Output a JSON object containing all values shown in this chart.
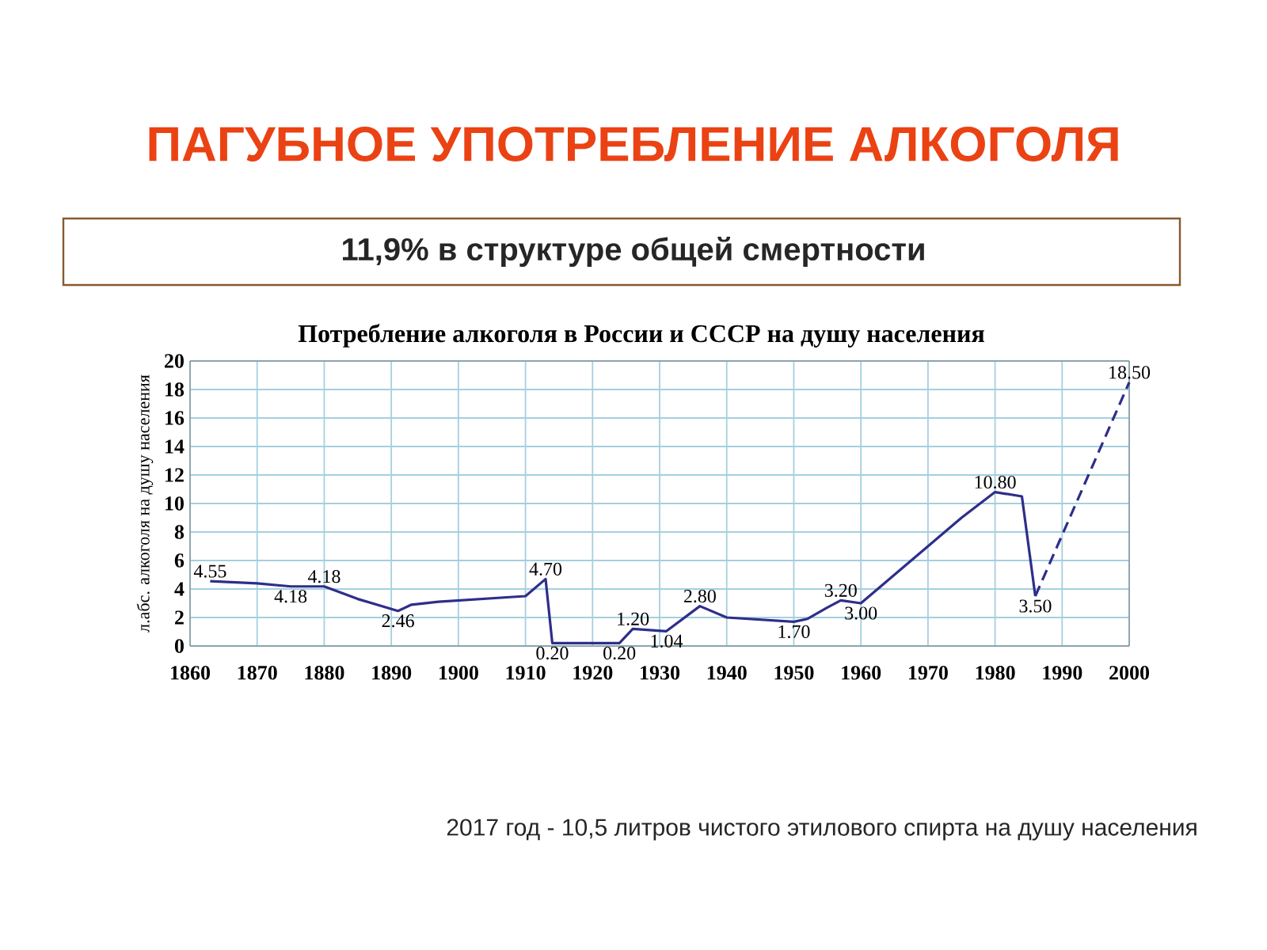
{
  "chart_data": {
    "type": "line",
    "title": "ПАГУБНОЕ УПОТРЕБЛЕНИЕ АЛКОГОЛЯ",
    "subtitle": "11,9% в структуре общей смертности",
    "annotations": [
      "Потребление алкоголя в России и СССР на душу населения",
      "2017 год - 10,5 литров чистого этилового спирта на душу населения"
    ],
    "ylabel": "л.абс. алкоголя на душу населения",
    "xlim": [
      1860,
      2000
    ],
    "ylim": [
      0,
      20
    ],
    "xticks": [
      1860,
      1870,
      1880,
      1890,
      1900,
      1910,
      1920,
      1930,
      1940,
      1950,
      1960,
      1970,
      1980,
      1990,
      2000
    ],
    "yticks": [
      0,
      2,
      4,
      6,
      8,
      10,
      12,
      14,
      16,
      18,
      20
    ],
    "grid": true,
    "marker": "none",
    "series": [
      {
        "line_style": "solid",
        "color": "#2e2e8a",
        "x": [
          1863,
          1870,
          1875,
          1880,
          1885,
          1891,
          1893,
          1897,
          1910,
          1913,
          1914,
          1924,
          1926,
          1931,
          1936,
          1940,
          1950,
          1952,
          1955,
          1957,
          1960,
          1970,
          1975,
          1980,
          1984,
          1986
        ],
        "values": [
          4.55,
          4.4,
          4.18,
          4.18,
          3.3,
          2.46,
          2.9,
          3.1,
          3.5,
          4.7,
          0.2,
          0.2,
          1.2,
          1.04,
          2.8,
          2.0,
          1.7,
          1.9,
          2.7,
          3.2,
          3.0,
          7.0,
          9.0,
          10.8,
          10.5,
          3.5
        ],
        "value_labels": [
          "4.55",
          null,
          "4.18",
          "4.18",
          null,
          "2.46",
          null,
          null,
          null,
          "4.70",
          "0.20",
          "0.20",
          "1.20",
          "1.04",
          "2.80",
          null,
          "1.70",
          null,
          null,
          "3.20",
          "3.00",
          null,
          null,
          "10.80",
          null,
          "3.50"
        ]
      },
      {
        "line_style": "dashed",
        "color": "#2e2e8a",
        "x": [
          1986,
          2000
        ],
        "values": [
          3.5,
          18.5
        ],
        "value_labels": [
          null,
          "18.50"
        ]
      }
    ]
  }
}
